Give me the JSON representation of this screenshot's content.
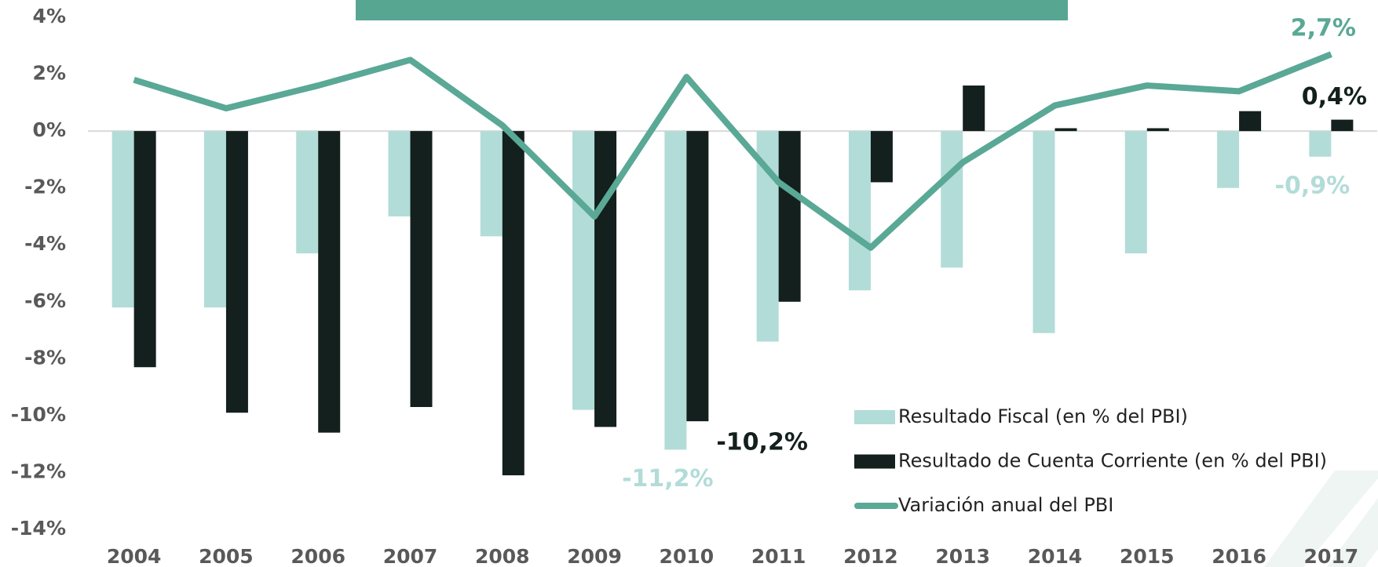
{
  "chart_data": {
    "type": "bar_line",
    "categories": [
      "2004",
      "2005",
      "2006",
      "2007",
      "2008",
      "2009",
      "2010",
      "2011",
      "2012",
      "2013",
      "2014",
      "2015",
      "2016",
      "2017"
    ],
    "series": [
      {
        "name": "Resultado Fiscal (en % del PBI)",
        "type": "bar",
        "color": "#b2dcd8",
        "values": [
          -6.2,
          -6.2,
          -4.3,
          -3.0,
          -3.7,
          -9.8,
          -11.2,
          -7.4,
          -5.6,
          -4.8,
          -7.1,
          -4.3,
          -2.0,
          -0.9
        ],
        "value_labels": [
          null,
          null,
          null,
          null,
          null,
          null,
          "-11,2%",
          null,
          null,
          null,
          null,
          null,
          null,
          "-0,9%"
        ]
      },
      {
        "name": "Resultado de Cuenta Corriente (en % del PBI)",
        "type": "bar",
        "color": "#13201d",
        "values": [
          -8.3,
          -9.9,
          -10.6,
          -9.7,
          -12.1,
          -10.4,
          -10.2,
          -6.0,
          -1.8,
          1.6,
          0.1,
          0.1,
          0.7,
          0.4
        ],
        "value_labels": [
          null,
          null,
          null,
          null,
          null,
          null,
          "-10,2%",
          null,
          null,
          null,
          null,
          null,
          null,
          "0,4%"
        ]
      },
      {
        "name": "Variación anual del PBI",
        "type": "line",
        "color": "#5aa896",
        "values": [
          1.8,
          0.8,
          1.6,
          2.5,
          0.2,
          -3.0,
          1.9,
          -1.8,
          -4.1,
          -1.1,
          0.9,
          1.6,
          1.4,
          2.7
        ],
        "value_labels": [
          null,
          null,
          null,
          null,
          null,
          null,
          null,
          null,
          null,
          null,
          null,
          null,
          null,
          "2,7%"
        ]
      }
    ],
    "ylim": [
      -14,
      4
    ],
    "yticks": [
      {
        "value": 4,
        "label": "4%"
      },
      {
        "value": 2,
        "label": "2%"
      },
      {
        "value": 0,
        "label": "0%"
      },
      {
        "value": -2,
        "label": "-2%"
      },
      {
        "value": -4,
        "label": "-4%"
      },
      {
        "value": -6,
        "label": "-6%"
      },
      {
        "value": -8,
        "label": "-8%"
      },
      {
        "value": -10,
        "label": "-10%"
      },
      {
        "value": -12,
        "label": "-12%"
      },
      {
        "value": -14,
        "label": "-14%"
      }
    ],
    "grid": false,
    "legend": "lower right"
  }
}
